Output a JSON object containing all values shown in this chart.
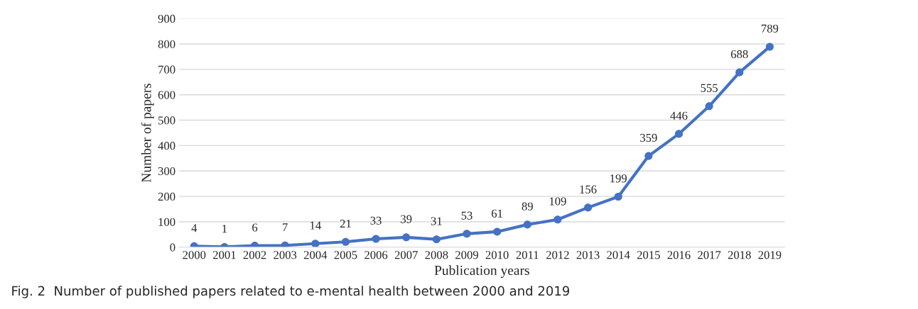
{
  "chart_data": {
    "type": "line",
    "xlabel": "Publication years",
    "ylabel": "Number of papers",
    "categories": [
      "2000",
      "2001",
      "2002",
      "2003",
      "2004",
      "2005",
      "2006",
      "2007",
      "2008",
      "2009",
      "2010",
      "2011",
      "2012",
      "2013",
      "2014",
      "2015",
      "2016",
      "2017",
      "2018",
      "2019"
    ],
    "series": [
      {
        "color": "#4472c4",
        "values": [
          4,
          1,
          6,
          7,
          14,
          21,
          33,
          39,
          31,
          53,
          61,
          89,
          109,
          156,
          199,
          359,
          446,
          555,
          688,
          789
        ]
      }
    ],
    "ylim": [
      0,
      900
    ],
    "yticks": [
      0,
      100,
      200,
      300,
      400,
      500,
      600,
      700,
      800,
      900
    ],
    "grid": "y",
    "marker": "circle",
    "line_style": "solid",
    "data_labels": true,
    "legend": false,
    "annotations": [
      "Fig. 2  Number of published papers related to e-mental health between 2000 and 2019"
    ]
  }
}
